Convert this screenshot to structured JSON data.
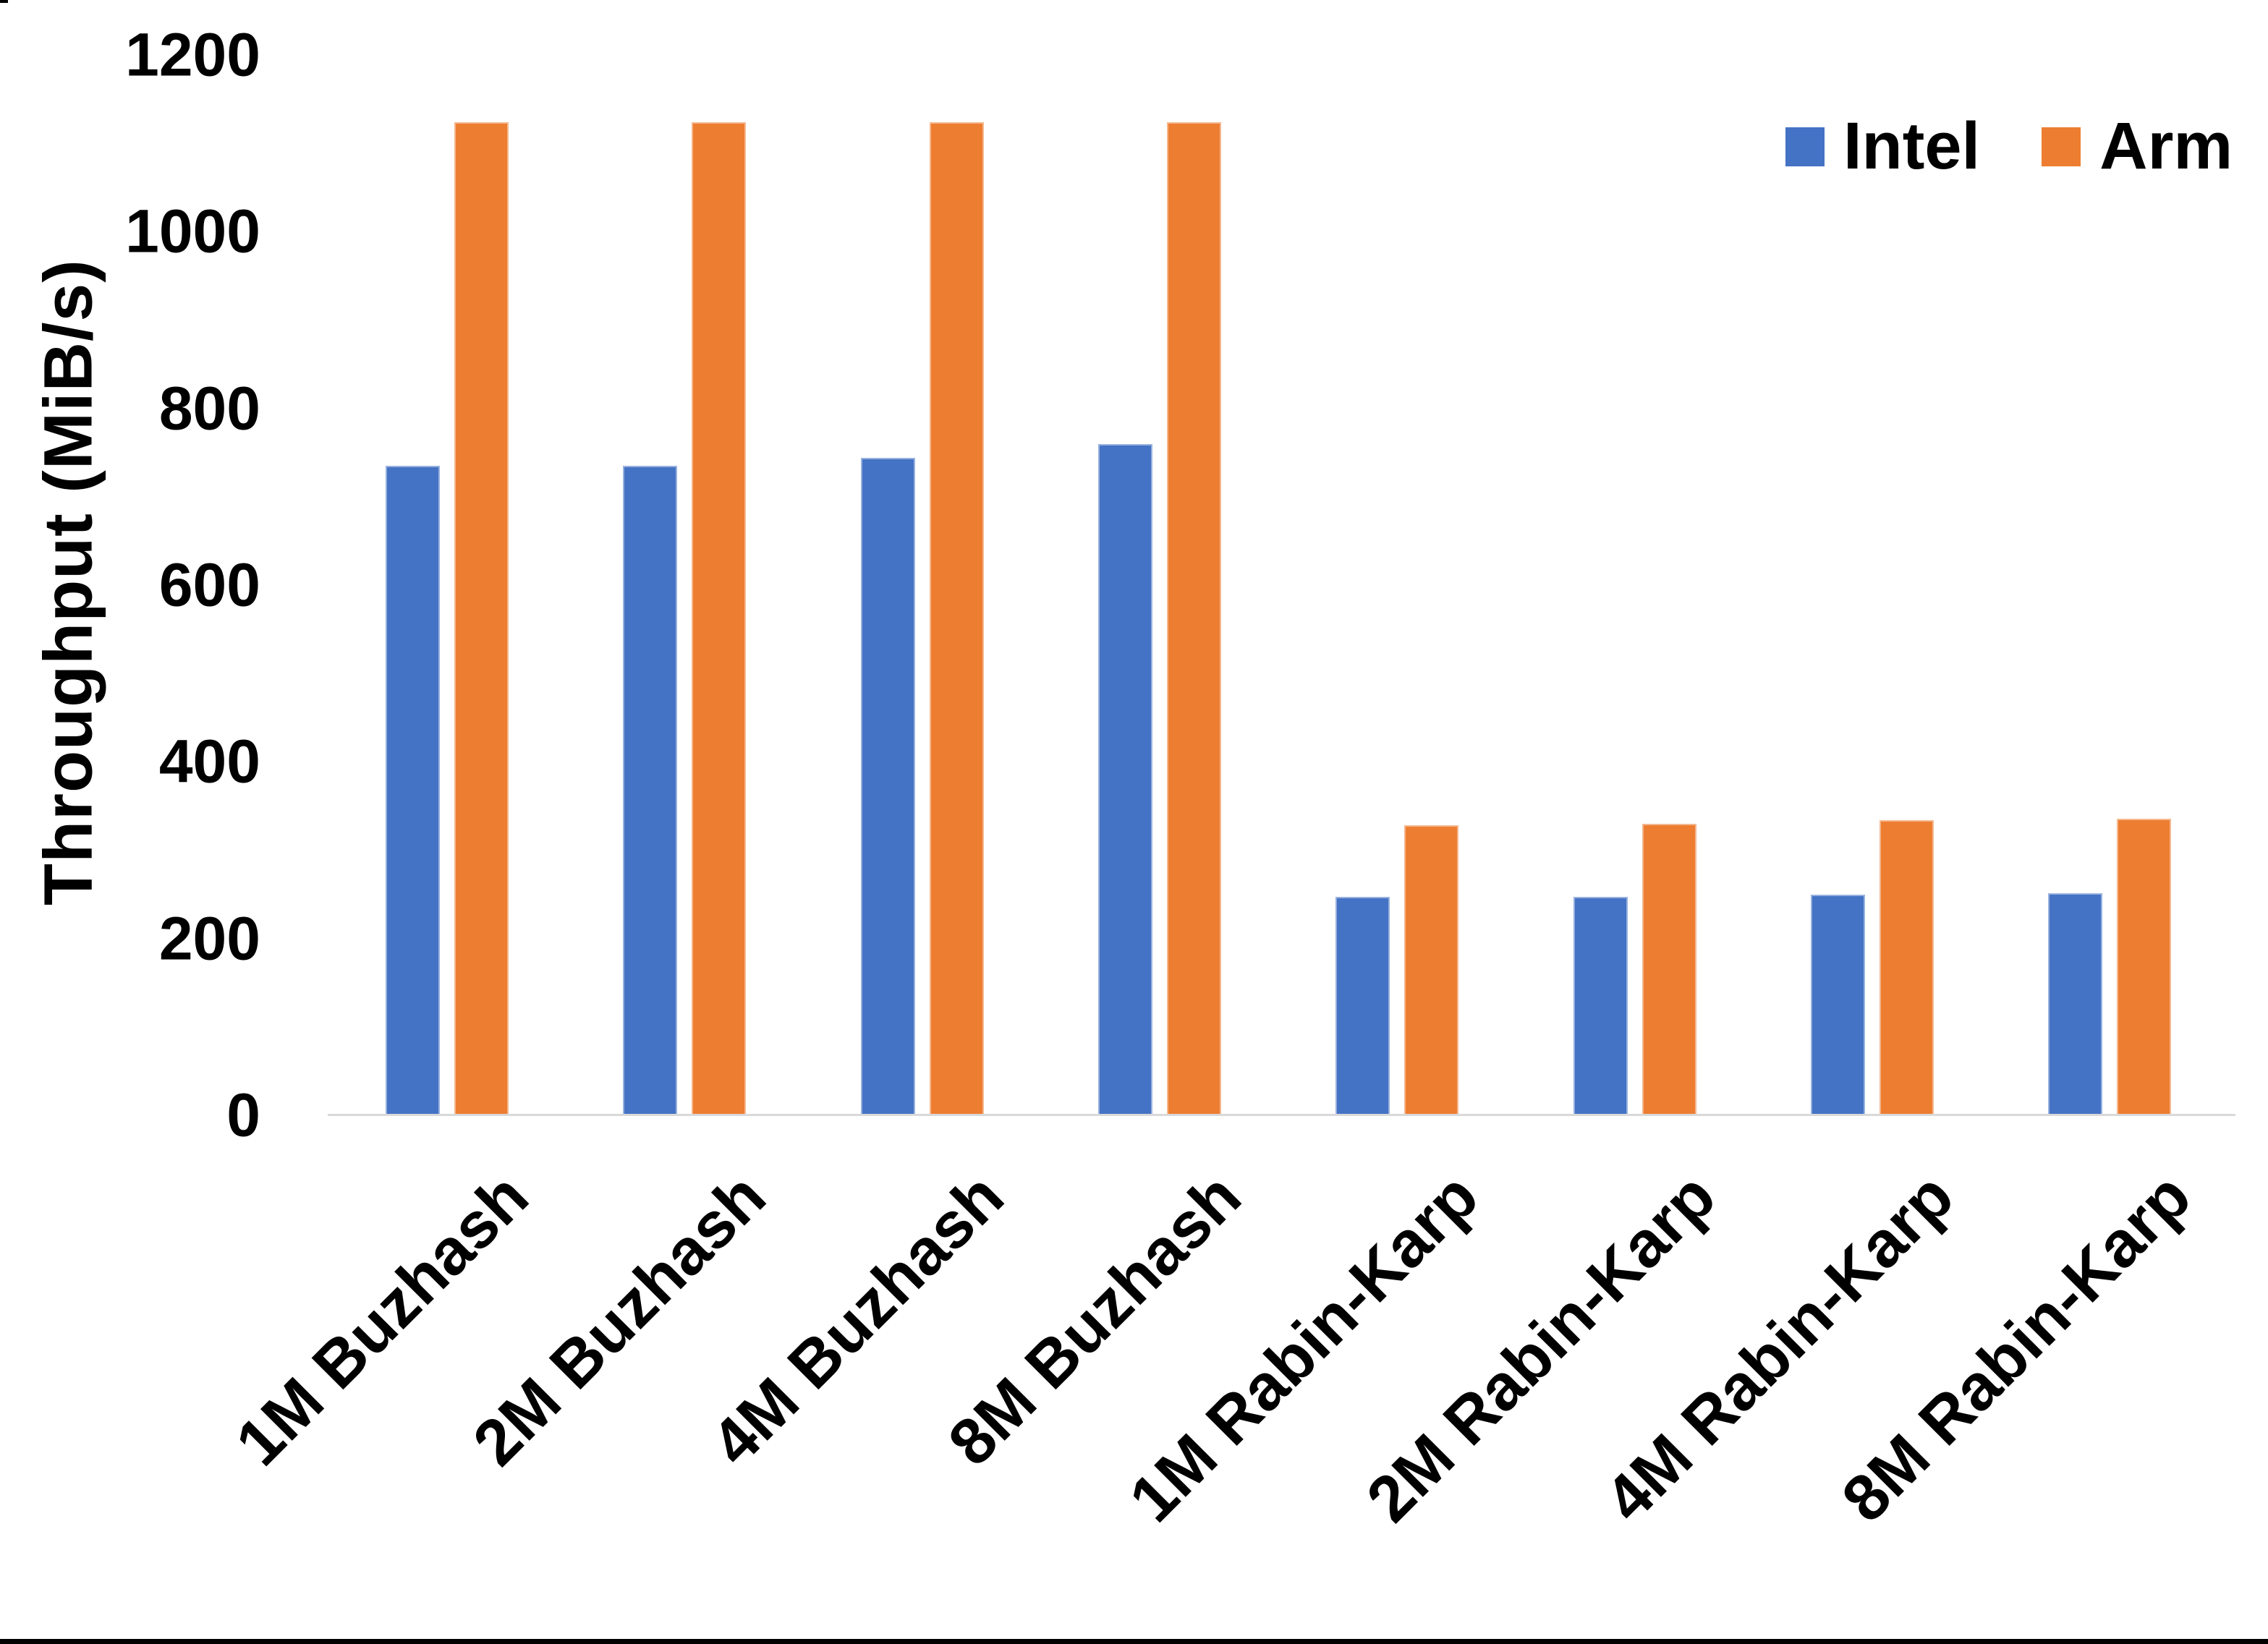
{
  "window": {
    "background_color": "#FFFFFF",
    "frame_color": "#000000"
  },
  "axes": {
    "y_title": "Throughput (MiB/s)",
    "y_tick_labels": [
      "0",
      "200",
      "400",
      "600",
      "800",
      "1000",
      "1200"
    ],
    "axis_line_color": "#D9D9D9",
    "text_color": "#000000"
  },
  "legend": {
    "items": [
      {
        "label": "Intel",
        "color": "#4472C4"
      },
      {
        "label": "Arm",
        "color": "#ED7D31"
      }
    ]
  },
  "chart_data": {
    "type": "bar",
    "title": "",
    "xlabel": "",
    "ylabel": "Throughput (MiB/s)",
    "categories": [
      "1M Buzhash",
      "2M Buzhash",
      "4M Buzhash",
      "8M Buzhash",
      "1M Rabin-Karp",
      "2M Rabin-Karp",
      "4M Rabin-Karp",
      "8M Rabin-Karp"
    ],
    "series": [
      {
        "name": "Intel",
        "color": "#4472C4",
        "values": [
          735,
          735,
          744,
          760,
          247,
          247,
          250,
          251
        ]
      },
      {
        "name": "Arm",
        "color": "#ED7D31",
        "values": [
          1124,
          1124,
          1124,
          1124,
          328,
          330,
          334,
          336
        ]
      }
    ],
    "ylim": [
      0,
      1200
    ],
    "yticks": [
      0,
      200,
      400,
      600,
      800,
      1000,
      1200
    ],
    "grid": false,
    "legend_position": "top-right"
  }
}
